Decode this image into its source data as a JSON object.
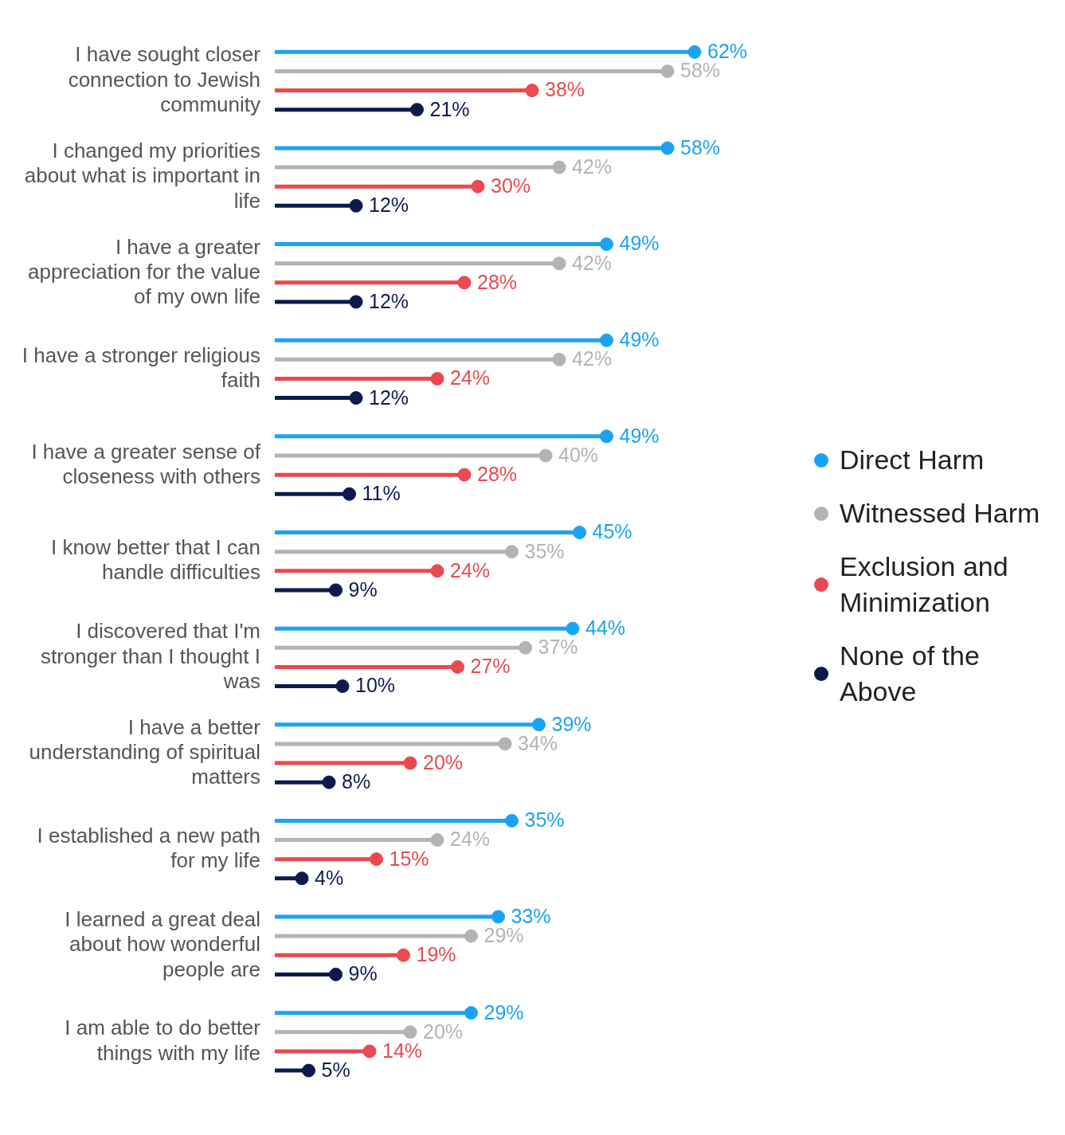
{
  "chart_data": {
    "type": "lollipop",
    "orientation": "horizontal",
    "categories": [
      "I have sought closer connection to Jewish community",
      "I changed my priorities about what is important in life",
      "I have a greater appreciation for the value of my own life",
      "I have a stronger religious faith",
      "I have a greater sense of closeness with others",
      "I know better that I can handle difficulties",
      "I discovered that I'm stronger than I thought I was",
      "I have a better understanding of spiritual matters",
      "I established a new path for my life",
      "I learned a great deal about how wonderful people are",
      "I am able to do better things with my life"
    ],
    "series": [
      {
        "name": "Direct Harm",
        "color": "#1aa3f5",
        "values": [
          62,
          58,
          49,
          49,
          49,
          45,
          44,
          39,
          35,
          33,
          29
        ],
        "value_labels": [
          "62%",
          "58%",
          "49%",
          "49%",
          "49%",
          "45%",
          "44%",
          "39%",
          "35%",
          "33%",
          "29%"
        ]
      },
      {
        "name": "Witnessed Harm",
        "color": "#b3b3b3",
        "values": [
          58,
          42,
          42,
          42,
          40,
          35,
          37,
          34,
          24,
          29,
          20
        ],
        "value_labels": [
          "58%",
          "42%",
          "42%",
          "42%",
          "40%",
          "35%",
          "37%",
          "34%",
          "24%",
          "29%",
          "20%"
        ]
      },
      {
        "name": "Exclusion and Minimization",
        "color": "#e84a4f",
        "values": [
          38,
          30,
          28,
          24,
          28,
          24,
          27,
          20,
          15,
          19,
          14
        ],
        "value_labels": [
          "38%",
          "30%",
          "28%",
          "24%",
          "28%",
          "24%",
          "27%",
          "20%",
          "15%",
          "19%",
          "14%"
        ]
      },
      {
        "name": "None of the Above",
        "color": "#0c1a4e",
        "values": [
          21,
          12,
          12,
          12,
          11,
          9,
          10,
          8,
          4,
          9,
          5
        ],
        "value_labels": [
          "21%",
          "12%",
          "12%",
          "12%",
          "11%",
          "9%",
          "10%",
          "8%",
          "4%",
          "9%",
          "5%"
        ]
      }
    ],
    "tick_labels": "y",
    "legend": "right",
    "marker": "circle"
  }
}
